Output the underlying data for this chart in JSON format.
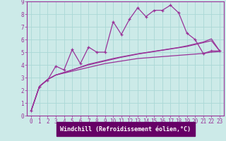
{
  "xlabel": "Windchill (Refroidissement éolien,°C)",
  "bg_color": "#cceae8",
  "grid_color": "#aad8d6",
  "line_color": "#993399",
  "xlabel_bg": "#660066",
  "xlabel_fg": "#ffffff",
  "xlim": [
    -0.5,
    23.5
  ],
  "ylim": [
    0,
    9
  ],
  "xticks": [
    0,
    1,
    2,
    3,
    4,
    5,
    6,
    7,
    8,
    9,
    10,
    11,
    12,
    13,
    14,
    15,
    16,
    17,
    18,
    19,
    20,
    21,
    22,
    23
  ],
  "yticks": [
    0,
    1,
    2,
    3,
    4,
    5,
    6,
    7,
    8,
    9
  ],
  "main_x": [
    0,
    1,
    2,
    3,
    4,
    5,
    6,
    7,
    8,
    9,
    10,
    11,
    12,
    13,
    14,
    15,
    16,
    17,
    18,
    19,
    20,
    21,
    22,
    23
  ],
  "main_y": [
    0.4,
    2.3,
    2.8,
    3.9,
    3.6,
    5.2,
    4.1,
    5.4,
    5.0,
    5.0,
    7.4,
    6.4,
    7.6,
    8.5,
    7.8,
    8.3,
    8.3,
    8.7,
    8.1,
    6.5,
    6.0,
    4.9,
    5.1,
    5.1
  ],
  "line2_x": [
    0,
    1,
    2,
    3,
    4,
    5,
    6,
    7,
    8,
    9,
    10,
    11,
    12,
    13,
    14,
    15,
    16,
    17,
    18,
    19,
    20,
    21,
    22,
    23
  ],
  "line2_y": [
    0.4,
    2.3,
    2.85,
    3.2,
    3.35,
    3.5,
    3.65,
    3.8,
    3.95,
    4.1,
    4.2,
    4.3,
    4.4,
    4.5,
    4.55,
    4.6,
    4.65,
    4.7,
    4.75,
    4.8,
    4.85,
    4.9,
    5.0,
    5.05
  ],
  "line3_x": [
    0,
    1,
    2,
    3,
    4,
    5,
    6,
    7,
    8,
    9,
    10,
    11,
    12,
    13,
    14,
    15,
    16,
    17,
    18,
    19,
    20,
    21,
    22,
    23
  ],
  "line3_y": [
    0.4,
    2.3,
    2.85,
    3.2,
    3.4,
    3.6,
    3.8,
    4.0,
    4.15,
    4.3,
    4.45,
    4.6,
    4.72,
    4.85,
    4.95,
    5.05,
    5.15,
    5.25,
    5.35,
    5.45,
    5.6,
    5.75,
    5.9,
    5.1
  ],
  "line4_x": [
    0,
    1,
    2,
    3,
    4,
    5,
    6,
    7,
    8,
    9,
    10,
    11,
    12,
    13,
    14,
    15,
    16,
    17,
    18,
    19,
    20,
    21,
    22,
    23
  ],
  "line4_y": [
    0.4,
    2.3,
    2.85,
    3.2,
    3.4,
    3.6,
    3.82,
    4.05,
    4.2,
    4.35,
    4.5,
    4.63,
    4.75,
    4.87,
    4.97,
    5.07,
    5.17,
    5.27,
    5.37,
    5.5,
    5.65,
    5.8,
    6.05,
    5.1
  ]
}
